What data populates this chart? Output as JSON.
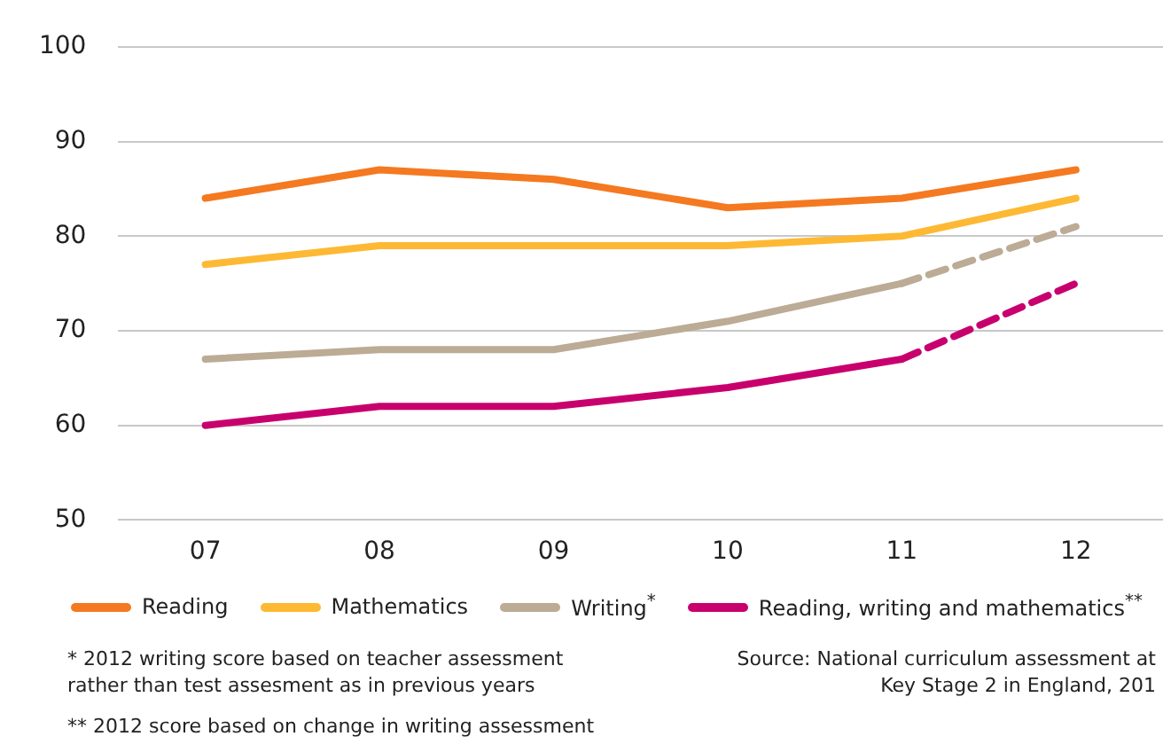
{
  "chart_data": {
    "type": "line",
    "categories": [
      "07",
      "08",
      "09",
      "10",
      "11",
      "12"
    ],
    "series": [
      {
        "name": "Reading",
        "color": "#f47920",
        "values": [
          84,
          87,
          86,
          83,
          84,
          87
        ],
        "line_style": "solid"
      },
      {
        "name": "Mathematics",
        "color": "#fdb934",
        "values": [
          77,
          79,
          79,
          79,
          80,
          84
        ],
        "line_style": "solid"
      },
      {
        "name": "Writing$^{*}$",
        "color": "#bcab95",
        "values": [
          67,
          68,
          68,
          71,
          75,
          null
        ],
        "line_style": "solid"
      },
      {
        "name": "Reading, writing and mathematics$^{**}$",
        "color": "#c8006e",
        "values": [
          60,
          62,
          62,
          64,
          67,
          null
        ],
        "line_style": "solid"
      },
      {
        "color": "#bcab95",
        "values": [
          null,
          null,
          null,
          null,
          75,
          81
        ],
        "line_style": "dashed"
      },
      {
        "color": "#c8006e",
        "values": [
          null,
          null,
          null,
          null,
          67,
          75
        ],
        "line_style": "dashed"
      }
    ],
    "ylim": [
      50,
      100
    ],
    "yticks": [
      50,
      60,
      70,
      80,
      90,
      100
    ],
    "grid": "y",
    "legend": "bottom",
    "marker": "none",
    "annotations": [
      "* 2012 writing score based on teacher assessment rather than test assesment as in previous years",
      "Source: National curriculum assessment at Key Stage 2 in England, 201",
      "** 2012 score based on change in writing assessment"
    ]
  }
}
